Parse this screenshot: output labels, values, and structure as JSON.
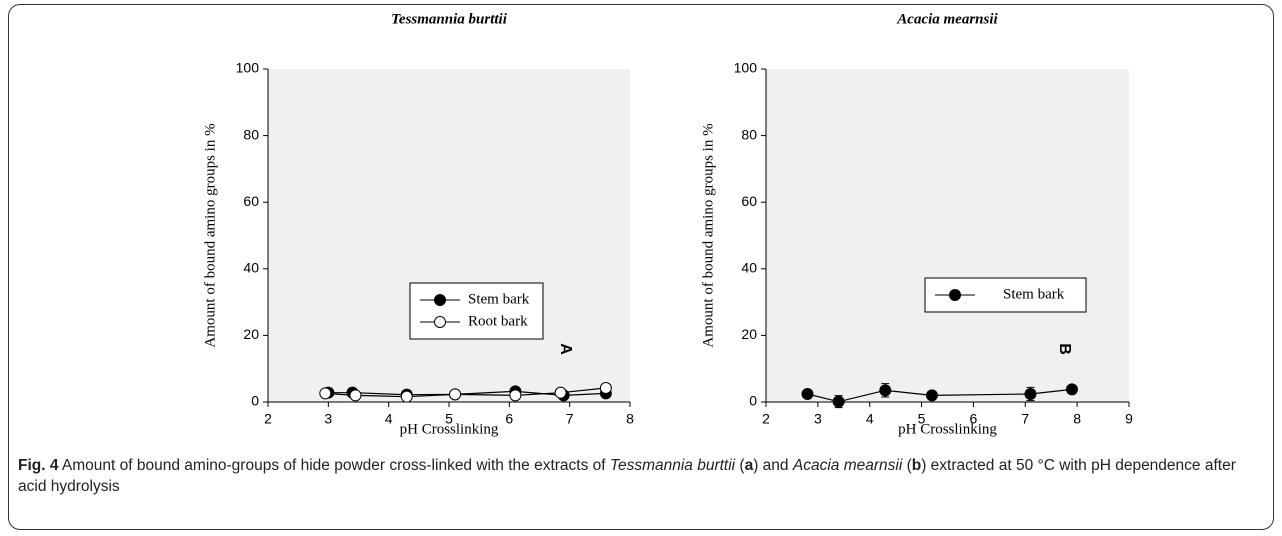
{
  "chart_data": [
    {
      "type": "scatter",
      "title": "Tessmannia burttii",
      "xlabel": "pH Crosslinking",
      "ylabel": "Amount of bound amino groups in %",
      "xlim": [
        2,
        8
      ],
      "xticks": [
        2,
        3,
        4,
        5,
        6,
        7,
        8
      ],
      "ylim": [
        0,
        100
      ],
      "yticks": [
        0,
        20,
        40,
        60,
        80,
        100
      ],
      "annotation": "A",
      "series": [
        {
          "name": "Stem bark",
          "color": "#000000",
          "marker": "filled",
          "x": [
            3.0,
            3.4,
            4.3,
            5.1,
            6.1,
            6.9,
            7.6
          ],
          "values": [
            2.8,
            2.8,
            2.2,
            2.3,
            3.2,
            2.0,
            2.6
          ]
        },
        {
          "name": "Root bark",
          "color": "#000000",
          "marker": "open",
          "x": [
            2.95,
            3.45,
            4.3,
            5.1,
            6.1,
            6.85,
            7.6
          ],
          "values": [
            2.6,
            2.0,
            1.6,
            2.3,
            2.0,
            2.8,
            4.2
          ]
        }
      ]
    },
    {
      "type": "scatter",
      "title": "Acacia mearnsii",
      "xlabel": "pH Crosslinking",
      "ylabel": "Amount of bound amino groups in %",
      "xlim": [
        2,
        9
      ],
      "xticks": [
        2,
        3,
        4,
        5,
        6,
        7,
        8,
        9
      ],
      "ylim": [
        0,
        100
      ],
      "yticks": [
        0,
        20,
        40,
        60,
        80,
        100
      ],
      "annotation": "B",
      "series": [
        {
          "name": "Stem bark",
          "color": "#000000",
          "marker": "filled",
          "x": [
            2.8,
            3.4,
            4.3,
            5.2,
            7.1,
            7.9
          ],
          "values": [
            2.4,
            0.1,
            3.5,
            2.0,
            2.4,
            3.8
          ],
          "errors": [
            0.5,
            1.8,
            2.0,
            0.4,
            2.0,
            1.2
          ]
        }
      ]
    }
  ],
  "caption": {
    "label": "Fig. 4",
    "parts": [
      {
        "text": " Amount of bound amino-groups of hide powder cross-linked with the extracts of "
      },
      {
        "text": "Tessmannia burttii",
        "italic": true
      },
      {
        "text": " ("
      },
      {
        "text": "a",
        "bold": true
      },
      {
        "text": ") and "
      },
      {
        "text": "Acacia mearnsii",
        "italic": true
      },
      {
        "text": " ("
      },
      {
        "text": "b",
        "bold": true
      },
      {
        "text": ") extracted at 50 °C with pH dependence after acid hydrolysis"
      }
    ]
  }
}
